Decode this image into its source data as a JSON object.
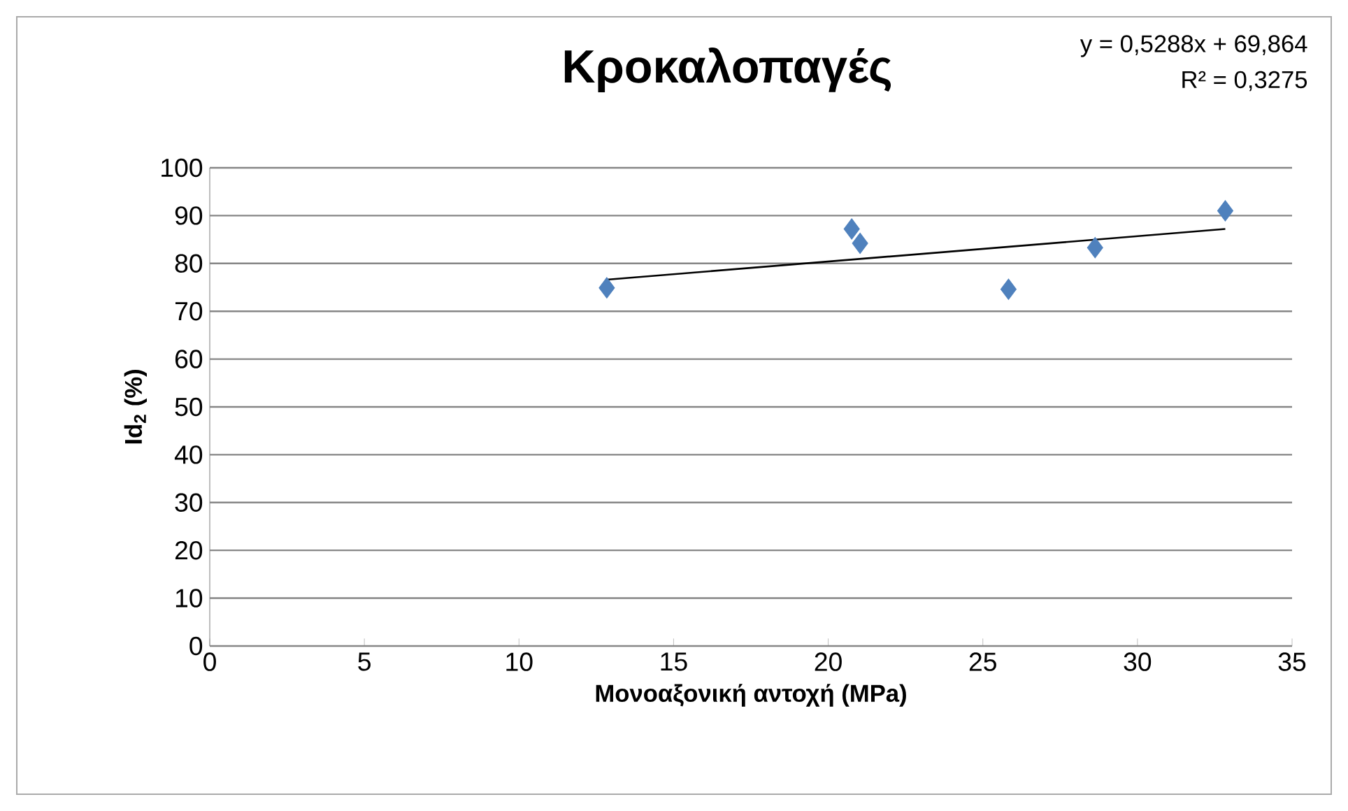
{
  "chart_data": {
    "type": "scatter",
    "title": "Κροκαλοπαγές",
    "xlabel": "Μονοαξονική αντοχή (MPa)",
    "ylabel": "Id$_{2}$ (%)",
    "annotations": [
      "y = 0,5288x + 69,864",
      "R² = 0,3275"
    ],
    "series": [
      {
        "color": "#4f81bd",
        "marker": "diamond",
        "x": [
          12.84,
          20.76,
          21.03,
          25.83,
          28.63,
          32.84
        ],
        "values": [
          74.9,
          87.2,
          84.2,
          74.6,
          83.3,
          91.0
        ]
      },
      {
        "type": "line",
        "color": "#000000",
        "marker": "none",
        "x": [
          12.84,
          32.84
        ],
        "values": [
          76.6,
          87.2
        ]
      }
    ],
    "xlim": [
      0,
      35
    ],
    "xticks": [
      0,
      5,
      10,
      15,
      20,
      25,
      30,
      35
    ],
    "ylim": [
      0,
      100
    ],
    "yticks": [
      0,
      10,
      20,
      30,
      40,
      50,
      60,
      70,
      80,
      90,
      100
    ],
    "grid": "y"
  }
}
